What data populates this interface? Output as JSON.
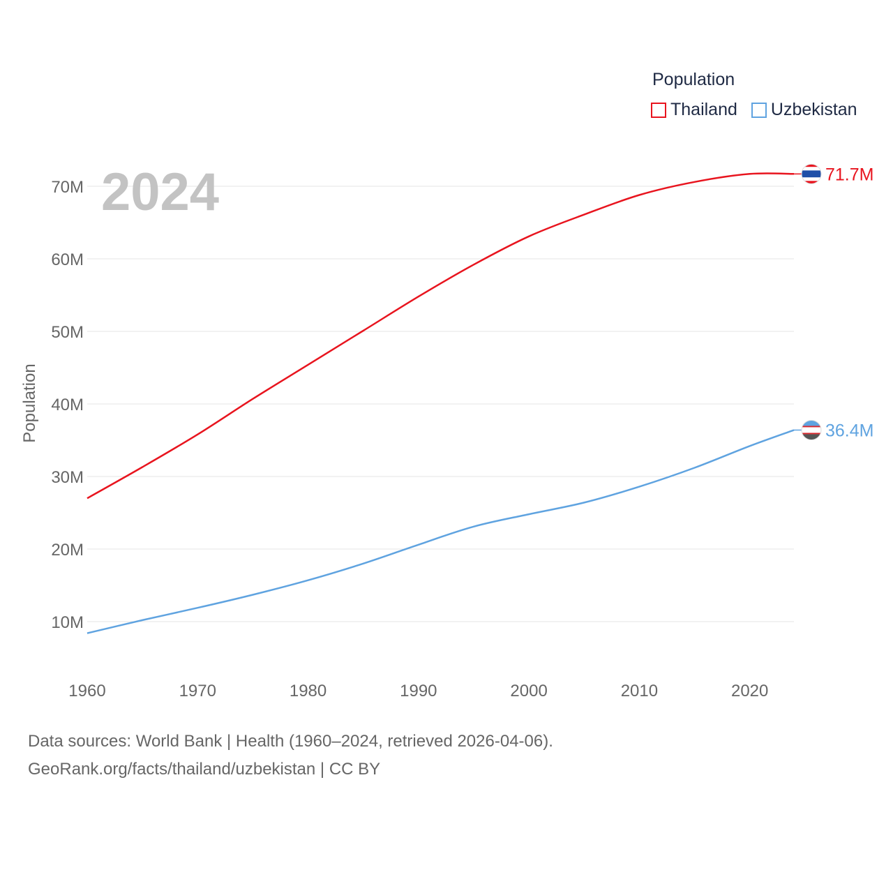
{
  "chart_data": {
    "type": "line",
    "year_label": "2024",
    "ylabel": "Population",
    "xlim": [
      1960,
      2024
    ],
    "ylim": [
      0,
      75000000
    ],
    "x_ticks": [
      1960,
      1970,
      1980,
      1990,
      2000,
      2010,
      2020
    ],
    "y_ticks": [
      {
        "value": 10000000,
        "label": "10M"
      },
      {
        "value": 20000000,
        "label": "20M"
      },
      {
        "value": 30000000,
        "label": "30M"
      },
      {
        "value": 40000000,
        "label": "40M"
      },
      {
        "value": 50000000,
        "label": "50M"
      },
      {
        "value": 60000000,
        "label": "60M"
      },
      {
        "value": 70000000,
        "label": "70M"
      }
    ],
    "legend_title": "Population",
    "legend_position": "top-right",
    "series": [
      {
        "name": "Thailand",
        "color": "#e8141e",
        "end_label": "71.7M",
        "x": [
          1960,
          1965,
          1970,
          1975,
          1980,
          1985,
          1990,
          1995,
          2000,
          2005,
          2010,
          2015,
          2020,
          2024
        ],
        "values": [
          27000000,
          31300000,
          35800000,
          40700000,
          45400000,
          50100000,
          54800000,
          59200000,
          63100000,
          66100000,
          68800000,
          70600000,
          71700000,
          71700000
        ]
      },
      {
        "name": "Uzbekistan",
        "color": "#5fa3e0",
        "end_label": "36.4M",
        "x": [
          1960,
          1965,
          1970,
          1975,
          1980,
          1985,
          1990,
          1995,
          2000,
          2005,
          2010,
          2015,
          2020,
          2024
        ],
        "values": [
          8400000,
          10200000,
          11900000,
          13700000,
          15700000,
          18000000,
          20600000,
          23100000,
          24800000,
          26400000,
          28600000,
          31200000,
          34200000,
          36400000
        ]
      }
    ]
  },
  "footer": {
    "sources": "Data sources: World Bank | Health (1960–2024, retrieved 2026-04-06).",
    "attribution": "GeoRank.org/facts/thailand/uzbekistan | CC BY"
  }
}
